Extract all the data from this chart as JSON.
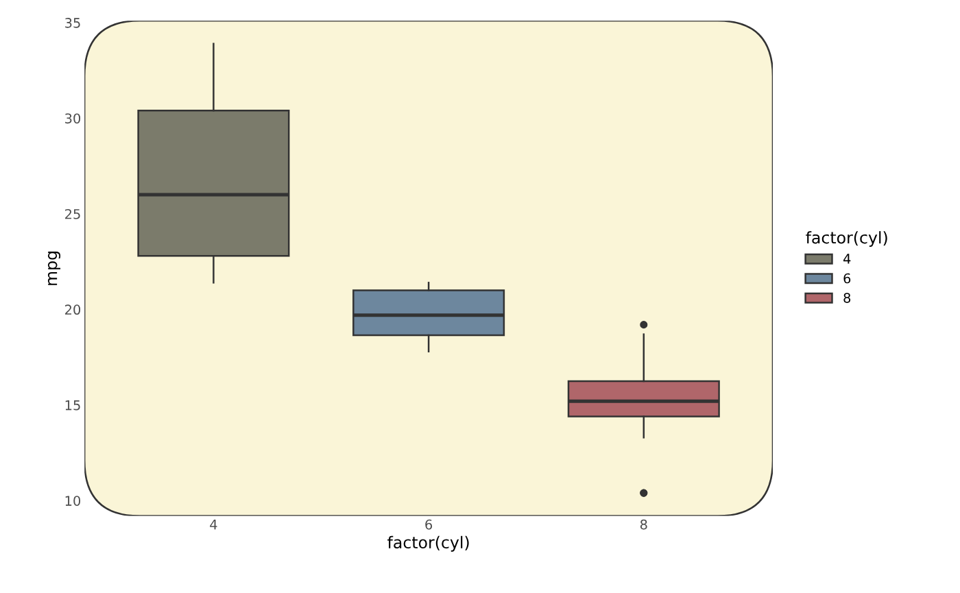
{
  "chart_data": {
    "type": "box",
    "xlabel": "factor(cyl)",
    "ylabel": "mpg",
    "legend_title": "factor(cyl)",
    "legend": "right",
    "grid": false,
    "categories": [
      "4",
      "6",
      "8"
    ],
    "ylim": [
      9.2,
      35.1
    ],
    "yticks": [
      10,
      15,
      20,
      25,
      30,
      35
    ],
    "series": [
      {
        "name": "4",
        "color": "#7b7b6b",
        "boxes": [
          {
            "low": 21.4,
            "q1": 22.8,
            "median": 26.0,
            "q3": 30.4,
            "high": 33.9
          },
          null,
          null
        ]
      },
      {
        "name": "6",
        "color": "#6d879e",
        "boxes": [
          null,
          {
            "low": 17.8,
            "q1": 18.65,
            "median": 19.7,
            "q3": 21.0,
            "high": 21.4
          },
          null
        ]
      },
      {
        "name": "8",
        "color": "#b0666a",
        "boxes": [
          null,
          null,
          {
            "low": 13.3,
            "q1": 14.4,
            "median": 15.2,
            "q3": 16.25,
            "high": 18.7,
            "outliers": [
              10.4,
              10.4,
              19.2
            ]
          }
        ]
      }
    ]
  }
}
